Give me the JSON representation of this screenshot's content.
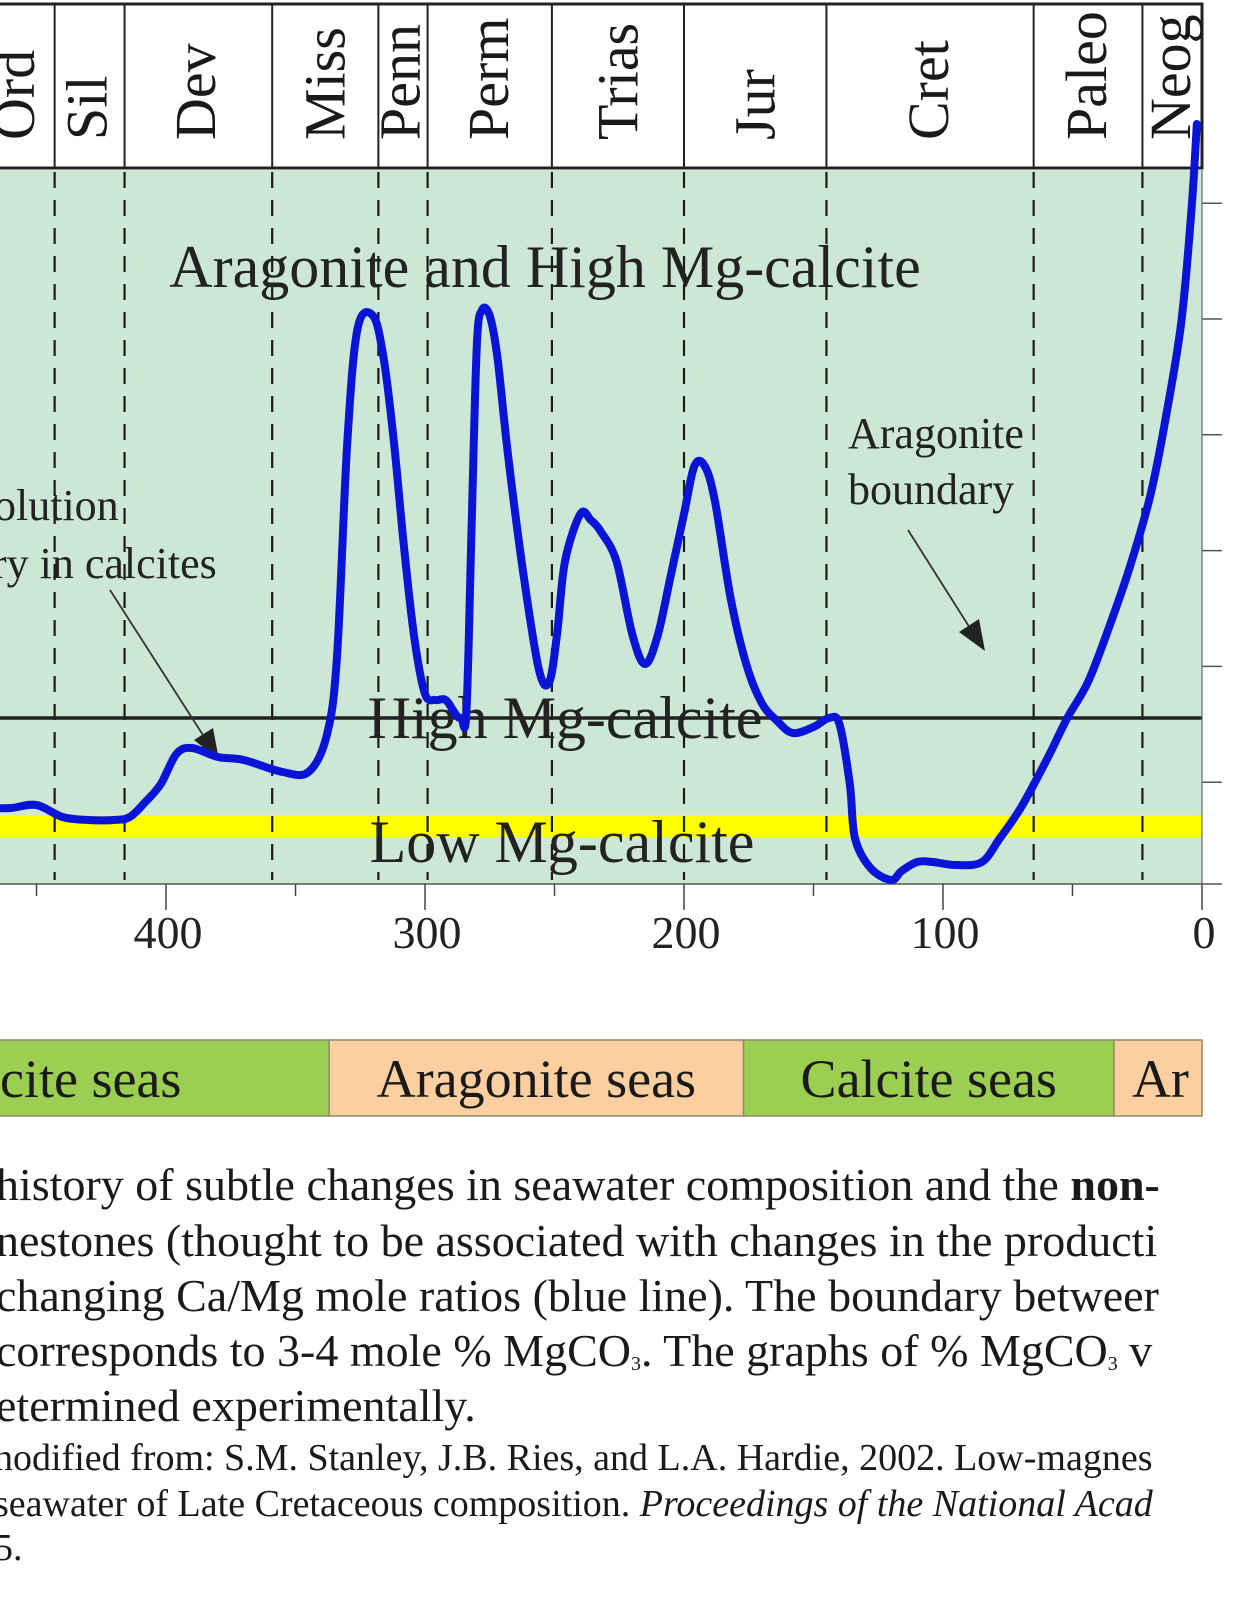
{
  "chart_data": {
    "type": "line",
    "x_axis": {
      "reversed": true,
      "range": [
        0,
        470
      ],
      "ticks": [
        400,
        300,
        200,
        100,
        0
      ]
    },
    "periods": [
      "Ord",
      "Sil",
      "Dev",
      "Miss",
      "Penn",
      "Perm",
      "Trias",
      "Jur",
      "Cret",
      "Paleo",
      "Neog"
    ],
    "period_boundaries": [
      443,
      416,
      359,
      318,
      299,
      251,
      200,
      145,
      65,
      23
    ],
    "region_labels": [
      "Aragonite and High Mg-calcite",
      "High Mg-calcite",
      "Low Mg-calcite"
    ],
    "annotations": [
      {
        "lines": [
          "olution",
          "ry in calcites"
        ]
      },
      {
        "lines": [
          "Aragonite",
          "boundary"
        ]
      }
    ],
    "series": [
      {
        "color": "#0a14d6",
        "x": [
          470,
          460,
          450,
          440,
          430,
          420,
          414,
          408,
          402,
          396,
          390,
          380,
          370,
          355,
          345,
          338,
          334,
          330,
          326,
          320,
          316,
          312,
          308,
          304,
          300,
          296,
          292,
          288,
          286,
          284,
          282,
          280,
          278,
          275,
          272,
          268,
          262,
          256,
          252,
          249,
          246,
          240,
          236,
          232,
          226,
          220,
          215,
          210,
          205,
          200,
          196,
          192,
          188,
          182,
          176,
          170,
          164,
          158,
          150,
          144,
          140,
          136,
          134,
          128,
          120,
          116,
          110,
          104,
          95,
          85,
          78,
          70,
          60,
          52,
          44,
          36,
          28,
          20,
          14,
          8,
          4,
          2
        ],
        "y": [
          1.5,
          1.5,
          1.55,
          1.35,
          1.3,
          1.3,
          1.35,
          1.6,
          1.9,
          2.4,
          2.5,
          2.35,
          2.3,
          2.1,
          2.1,
          2.7,
          4.0,
          7.6,
          9.5,
          9.7,
          9.0,
          7.6,
          5.8,
          4.3,
          3.4,
          3.3,
          3.3,
          3.05,
          3.0,
          3.1,
          6.2,
          9.2,
          9.8,
          9.7,
          9.0,
          7.4,
          5.4,
          3.8,
          3.6,
          4.4,
          5.6,
          6.4,
          6.3,
          6.1,
          5.6,
          4.4,
          3.9,
          4.4,
          5.4,
          6.4,
          7.2,
          7.2,
          6.6,
          5.0,
          3.9,
          3.25,
          2.95,
          2.75,
          2.85,
          3.0,
          2.9,
          1.9,
          1.0,
          0.5,
          0.3,
          0.45,
          0.6,
          0.6,
          0.55,
          0.6,
          1.0,
          1.5,
          2.3,
          3.0,
          3.6,
          4.5,
          5.5,
          6.7,
          8.0,
          9.6,
          11.5,
          12.9
        ]
      }
    ],
    "boundaries": {
      "aragonite_high_mg": 3.0,
      "high_low_mg": 1.2
    },
    "seas_bands": [
      {
        "label": "cite seas",
        "kind": "calcite",
        "from": 470,
        "to": 337
      },
      {
        "label": "Aragonite seas",
        "kind": "aragonite",
        "from": 337,
        "to": 177
      },
      {
        "label": "Calcite seas",
        "kind": "calcite",
        "from": 177,
        "to": 34
      },
      {
        "label": "Ar",
        "kind": "aragonite",
        "from": 34,
        "to": 0
      }
    ],
    "colors": {
      "plot_bg": "#cde7d6",
      "line": "#0a14d6",
      "yellow_band": "#ffff00",
      "calcite_seas": "#9ccf51",
      "aragonite_seas": "#fbcfa0",
      "boundary_line": "#222222"
    }
  },
  "caption": {
    "line1_prefix": "history of subtle changes in seawater composition and the ",
    "line1_bold": "non-",
    "line2": "nestones (thought to be associated with changes in the producti",
    "line3": "changing Ca/Mg mole ratios (blue line). The boundary betweer",
    "line4_a": "corresponds to 3-4 mole % MgCO",
    "line4_sub1": "3",
    "line4_b": ". The graphs of % MgCO",
    "line4_sub2": "3",
    "line4_c": " v",
    "line5": "etermined experimentally.",
    "source1": "nodified from: S.M. Stanley, J.B. Ries, and L.A. Hardie, 2002. Low-magnes",
    "source2_prefix": "seawater of Late Cretaceous composition. ",
    "source2_italic": "Proceedings of the National Acad",
    "source3": "5."
  }
}
